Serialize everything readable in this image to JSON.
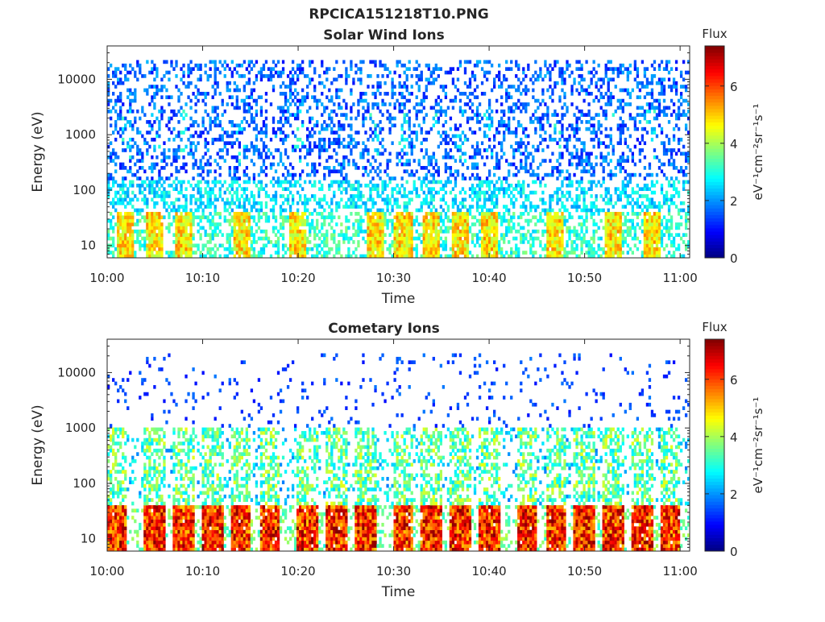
{
  "figure": {
    "title": "RPCICA151218T10.PNG"
  },
  "chart_data": [
    {
      "type": "heatmap",
      "title": "Solar Wind Ions",
      "xlabel": "Time",
      "ylabel": "Energy (eV)",
      "x_ticks": [
        "10:00",
        "10:10",
        "10:20",
        "10:30",
        "10:40",
        "10:50",
        "11:00"
      ],
      "xlim": [
        "10:00",
        "11:01"
      ],
      "y_scale": "log",
      "y_ticks": [
        10,
        100,
        1000,
        10000
      ],
      "y_tick_labels": [
        "10",
        "100",
        "1000",
        "10000"
      ],
      "ylim": [
        6,
        40000
      ],
      "colorbar": {
        "title": "Flux",
        "label": "eV⁻¹cm⁻²sr⁻¹s⁻¹",
        "range": [
          0,
          7.4
        ],
        "ticks": [
          0,
          2,
          4,
          6
        ],
        "colormap": "jet"
      },
      "bursts_time": [
        "10:02",
        "10:05",
        "10:08",
        "10:14",
        "10:20",
        "10:28",
        "10:31",
        "10:34",
        "10:37",
        "10:40",
        "10:47",
        "10:53",
        "10:57"
      ],
      "typical_flux_by_energy": [
        {
          "energy_band": "10-40 eV",
          "flux_range": [
            3,
            5
          ]
        },
        {
          "energy_band": "40-150 eV",
          "flux_range": [
            2,
            3
          ]
        },
        {
          "energy_band": "150-20000 eV",
          "flux_range": [
            1,
            2
          ]
        }
      ]
    },
    {
      "type": "heatmap",
      "title": "Cometary Ions",
      "xlabel": "Time",
      "ylabel": "Energy (eV)",
      "x_ticks": [
        "10:00",
        "10:10",
        "10:20",
        "10:30",
        "10:40",
        "10:50",
        "11:00"
      ],
      "xlim": [
        "10:00",
        "11:01"
      ],
      "y_scale": "log",
      "y_ticks": [
        10,
        100,
        1000,
        10000
      ],
      "y_tick_labels": [
        "10",
        "100",
        "1000",
        "10000"
      ],
      "ylim": [
        6,
        40000
      ],
      "colorbar": {
        "title": "Flux",
        "label": "eV⁻¹cm⁻²sr⁻¹s⁻¹",
        "range": [
          0,
          7.4
        ],
        "ticks": [
          0,
          2,
          4,
          6
        ],
        "colormap": "jet"
      },
      "bursts_time": [
        "10:01",
        "10:05",
        "10:08",
        "10:11",
        "10:14",
        "10:17",
        "10:21",
        "10:24",
        "10:27",
        "10:31",
        "10:34",
        "10:37",
        "10:40",
        "10:44",
        "10:47",
        "10:50",
        "10:53",
        "10:56",
        "10:59"
      ],
      "typical_flux_by_energy": [
        {
          "energy_band": "10-40 eV",
          "flux_range": [
            5,
            7.4
          ]
        },
        {
          "energy_band": "40-1000 eV",
          "flux_range": [
            2,
            4
          ]
        },
        {
          "energy_band": "1000-20000 eV",
          "flux_range": [
            1,
            2
          ]
        }
      ]
    }
  ]
}
